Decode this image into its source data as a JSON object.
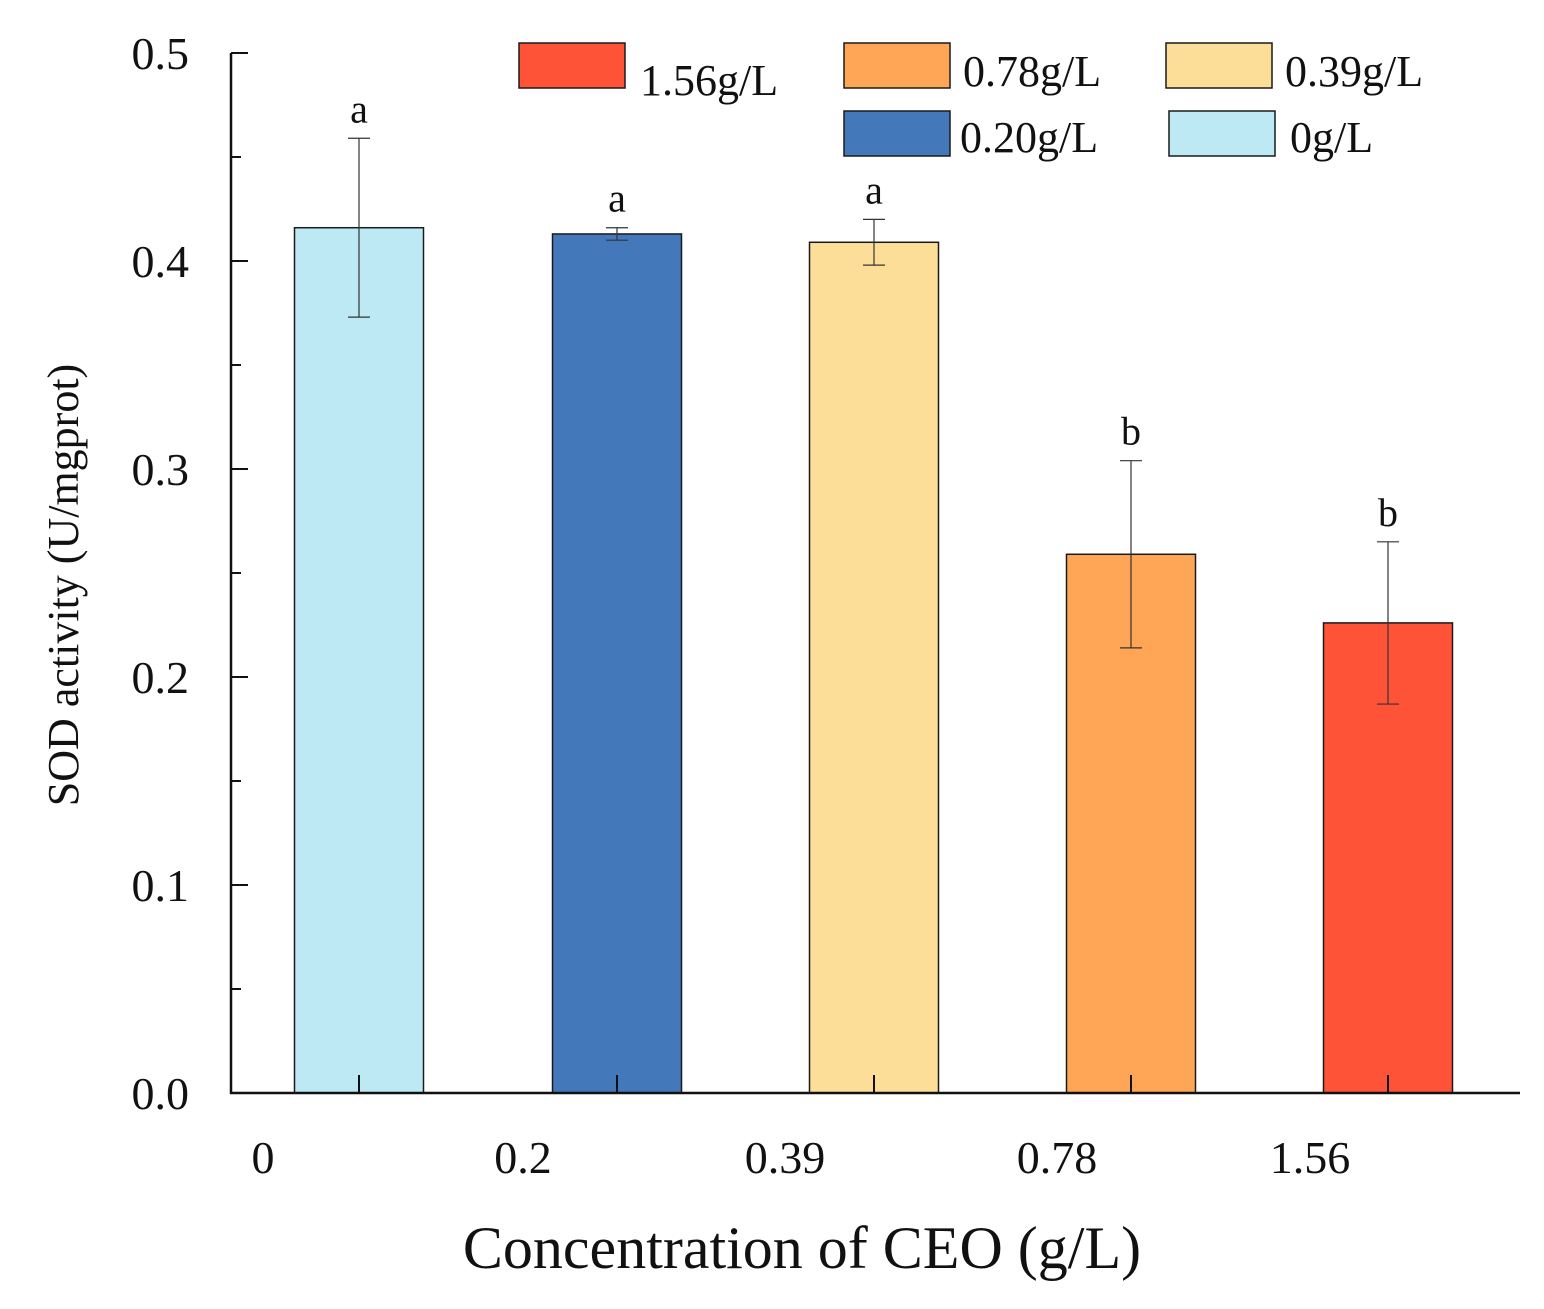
{
  "chart_data": {
    "type": "bar",
    "title": "",
    "xlabel": "Concentration of CEO (g/L)",
    "ylabel": "SOD activity (U/mgprot)",
    "ylim": [
      0,
      0.5
    ],
    "yticks": [
      "0.0",
      "0.1",
      "0.2",
      "0.3",
      "0.4",
      "0.5"
    ],
    "categories": [
      "0",
      "0.2",
      "0.39",
      "0.78",
      "1.56"
    ],
    "values": [
      0.416,
      0.413,
      0.409,
      0.259,
      0.226
    ],
    "errors": [
      0.043,
      0.003,
      0.011,
      0.045,
      0.039
    ],
    "significance": [
      "a",
      "a",
      "a",
      "b",
      "b"
    ],
    "colors": [
      "#bce9f3",
      "#4379bb",
      "#fcde99",
      "#fea656",
      "#fe5337"
    ],
    "legend": [
      {
        "label": "1.56g/L",
        "color": "#fe5337"
      },
      {
        "label": "0.78g/L",
        "color": "#fea656"
      },
      {
        "label": "0.39g/L",
        "color": "#fcde99"
      },
      {
        "label": "0.20g/L",
        "color": "#4379bb"
      },
      {
        "label": "0g/L",
        "color": "#bce9f3"
      }
    ],
    "legend_position": "top-right",
    "grid": false
  }
}
